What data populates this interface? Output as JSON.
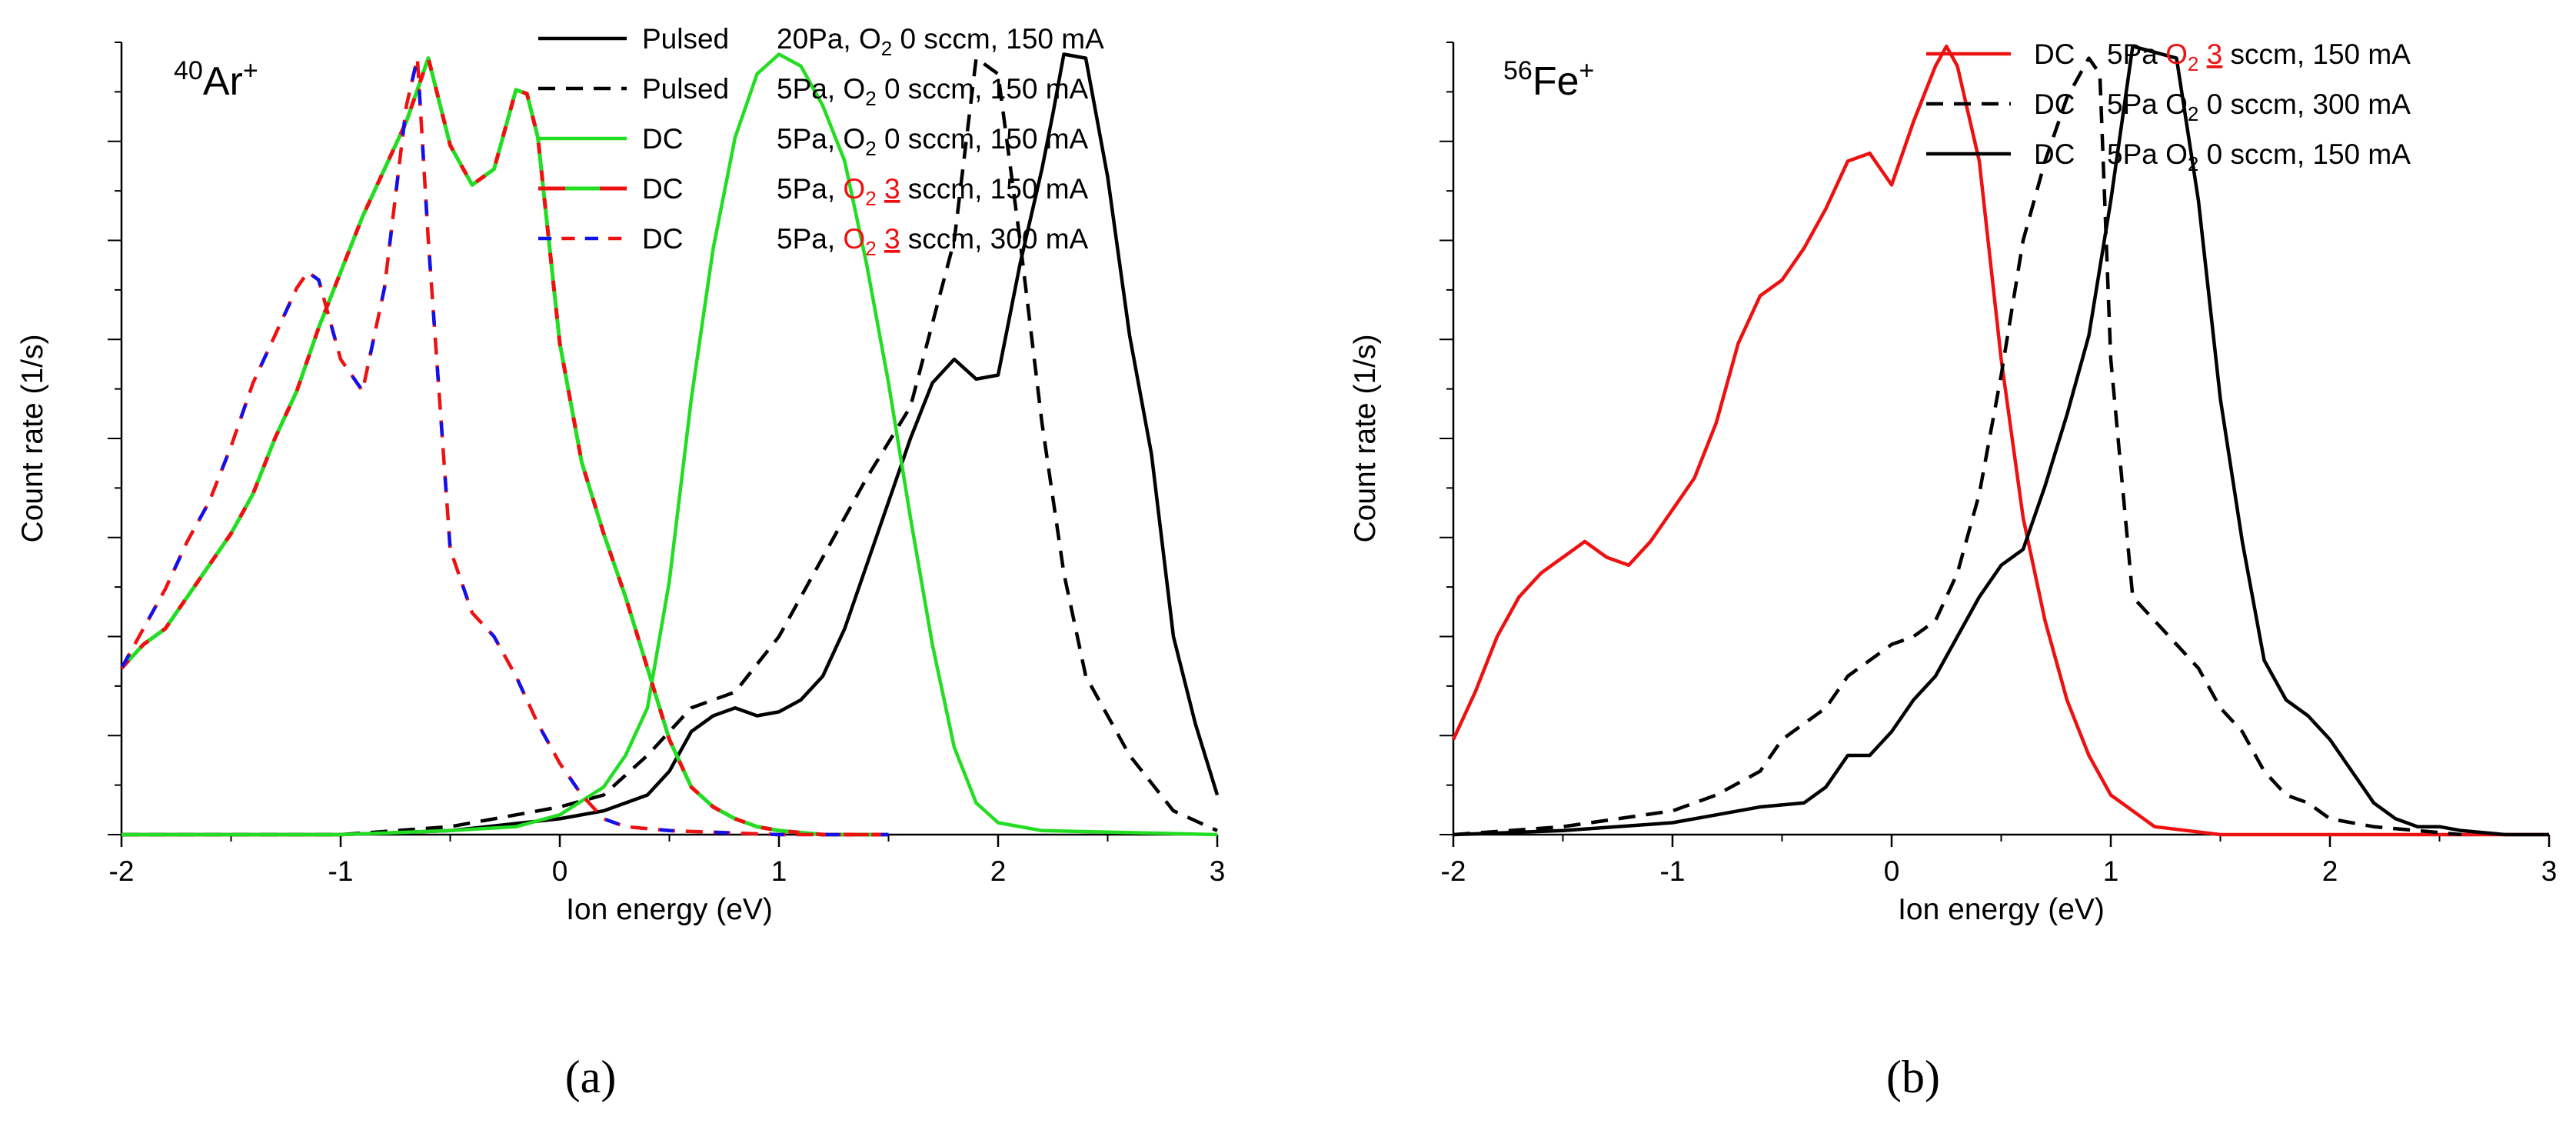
{
  "figure": {
    "captions": [
      "(a)",
      "(b)"
    ]
  },
  "chart_data": [
    {
      "id": "a",
      "type": "line",
      "title": "",
      "annotation": {
        "mass": "40",
        "element": "Ar",
        "charge": "+"
      },
      "xlabel": "Ion energy (eV)",
      "ylabel": "Count rate (1/s)",
      "xlim": [
        -2,
        3
      ],
      "ylim": [
        0,
        1
      ],
      "xticks": [
        -2,
        -1,
        0,
        1,
        2,
        3
      ],
      "yticks_unlabeled": true,
      "legend_position": "top-right",
      "series": [
        {
          "name": "Pulsed 20Pa, O2 0 sccm, 150 mA",
          "legend": {
            "c1": "Pulsed",
            "c2": "20Pa,",
            "gas": "O2",
            "flow": "0",
            "rest": "sccm, 150 mA",
            "gas_red": false
          },
          "color": "#000000",
          "color2": null,
          "dash": "solid",
          "x": [
            -2,
            -1,
            -0.5,
            0,
            0.2,
            0.4,
            0.5,
            0.6,
            0.7,
            0.8,
            0.9,
            1.0,
            1.1,
            1.2,
            1.3,
            1.4,
            1.5,
            1.6,
            1.7,
            1.8,
            1.9,
            2.0,
            2.1,
            2.2,
            2.25,
            2.3,
            2.4,
            2.5,
            2.6,
            2.7,
            2.8,
            2.9,
            3.0
          ],
          "y": [
            0,
            0,
            0.005,
            0.02,
            0.03,
            0.05,
            0.08,
            0.13,
            0.15,
            0.16,
            0.15,
            0.155,
            0.17,
            0.2,
            0.26,
            0.34,
            0.42,
            0.5,
            0.57,
            0.6,
            0.575,
            0.58,
            0.72,
            0.84,
            0.91,
            0.985,
            0.98,
            0.83,
            0.63,
            0.48,
            0.25,
            0.14,
            0.05
          ]
        },
        {
          "name": "Pulsed 5Pa, O2 0 sccm, 150 mA",
          "legend": {
            "c1": "Pulsed",
            "c2": "5Pa,",
            "gas": "O2",
            "flow": "0",
            "rest": "sccm, 150 mA",
            "gas_red": false
          },
          "color": "#000000",
          "color2": null,
          "dash": "dashed",
          "x": [
            -2,
            -1,
            -0.5,
            -0.2,
            0,
            0.2,
            0.4,
            0.6,
            0.8,
            1.0,
            1.2,
            1.4,
            1.6,
            1.8,
            1.9,
            2.0,
            2.1,
            2.2,
            2.3,
            2.4,
            2.6,
            2.8,
            3.0
          ],
          "y": [
            0,
            0,
            0.01,
            0.025,
            0.035,
            0.05,
            0.1,
            0.16,
            0.18,
            0.25,
            0.35,
            0.45,
            0.54,
            0.75,
            0.98,
            0.96,
            0.75,
            0.52,
            0.33,
            0.2,
            0.1,
            0.03,
            0.005
          ]
        },
        {
          "name": "DC 5Pa, O2 0 sccm, 150 mA",
          "legend": {
            "c1": "DC",
            "c2": "5Pa,",
            "gas": "O2",
            "flow": "0",
            "rest": "sccm, 150 mA",
            "gas_red": false
          },
          "color": "#22dd22",
          "color2": null,
          "dash": "solid",
          "x": [
            -2,
            -1,
            -0.5,
            -0.2,
            0,
            0.2,
            0.3,
            0.4,
            0.5,
            0.6,
            0.7,
            0.8,
            0.9,
            1.0,
            1.1,
            1.2,
            1.3,
            1.4,
            1.5,
            1.6,
            1.7,
            1.8,
            1.9,
            2.0,
            2.2,
            3.0
          ],
          "y": [
            0,
            0,
            0.005,
            0.01,
            0.025,
            0.06,
            0.1,
            0.16,
            0.32,
            0.55,
            0.74,
            0.88,
            0.96,
            0.985,
            0.97,
            0.92,
            0.85,
            0.72,
            0.57,
            0.4,
            0.24,
            0.11,
            0.04,
            0.015,
            0.005,
            0
          ]
        },
        {
          "name": "DC 5Pa, O2 3 sccm, 150 mA",
          "legend": {
            "c1": "DC",
            "c2": "5Pa,",
            "gas": "O2",
            "flow": "3",
            "rest": "sccm, 150 mA",
            "gas_red": true
          },
          "color": "#ee1111",
          "color2": "#22dd22",
          "dash": "solid",
          "x": [
            -2,
            -1.9,
            -1.8,
            -1.7,
            -1.6,
            -1.5,
            -1.4,
            -1.3,
            -1.2,
            -1.1,
            -1.0,
            -0.9,
            -0.8,
            -0.7,
            -0.6,
            -0.5,
            -0.4,
            -0.3,
            -0.2,
            -0.15,
            -0.1,
            0,
            0.1,
            0.2,
            0.3,
            0.4,
            0.5,
            0.6,
            0.7,
            0.8,
            0.9,
            1.0,
            1.2,
            1.5
          ],
          "y": [
            0.21,
            0.24,
            0.26,
            0.3,
            0.34,
            0.38,
            0.43,
            0.5,
            0.56,
            0.64,
            0.71,
            0.78,
            0.84,
            0.9,
            0.98,
            0.87,
            0.82,
            0.84,
            0.94,
            0.935,
            0.88,
            0.62,
            0.47,
            0.38,
            0.3,
            0.21,
            0.12,
            0.06,
            0.035,
            0.02,
            0.01,
            0.005,
            0,
            0
          ]
        },
        {
          "name": "DC 5Pa, O2 3 sccm, 300 mA",
          "legend": {
            "c1": "DC",
            "c2": "5Pa,",
            "gas": "O2",
            "flow": "3",
            "rest": "sccm, 300 mA",
            "gas_red": true
          },
          "color": "#ee1111",
          "color2": "#1111ee",
          "dash": "dashed",
          "x": [
            -2,
            -1.9,
            -1.8,
            -1.7,
            -1.6,
            -1.5,
            -1.4,
            -1.3,
            -1.2,
            -1.15,
            -1.1,
            -1.0,
            -0.9,
            -0.8,
            -0.7,
            -0.65,
            -0.6,
            -0.5,
            -0.4,
            -0.3,
            -0.2,
            -0.1,
            0,
            0.1,
            0.2,
            0.3,
            0.5,
            1.0,
            1.5
          ],
          "y": [
            0.21,
            0.26,
            0.31,
            0.37,
            0.42,
            0.49,
            0.57,
            0.63,
            0.69,
            0.71,
            0.7,
            0.6,
            0.56,
            0.69,
            0.92,
            0.98,
            0.75,
            0.36,
            0.28,
            0.25,
            0.2,
            0.14,
            0.09,
            0.05,
            0.02,
            0.01,
            0.005,
            0,
            0
          ]
        }
      ]
    },
    {
      "id": "b",
      "type": "line",
      "title": "",
      "annotation": {
        "mass": "56",
        "element": "Fe",
        "charge": "+"
      },
      "xlabel": "Ion energy (eV)",
      "ylabel": "Count rate (1/s)",
      "xlim": [
        -2,
        3
      ],
      "ylim": [
        0,
        1
      ],
      "xticks": [
        -2,
        -1,
        0,
        1,
        2,
        3
      ],
      "yticks_unlabeled": true,
      "legend_position": "top-right",
      "series": [
        {
          "name": "DC 5Pa O2 3 sccm, 150 mA",
          "legend": {
            "c1": "DC",
            "c2": "5Pa",
            "gas": "O2",
            "flow": "3",
            "rest": "sccm, 150 mA",
            "gas_red": true
          },
          "color": "#ee1111",
          "color2": null,
          "dash": "solid",
          "x": [
            -2,
            -1.9,
            -1.8,
            -1.7,
            -1.6,
            -1.5,
            -1.4,
            -1.3,
            -1.2,
            -1.1,
            -1.0,
            -0.9,
            -0.8,
            -0.7,
            -0.6,
            -0.5,
            -0.4,
            -0.3,
            -0.2,
            -0.1,
            0,
            0.1,
            0.2,
            0.25,
            0.3,
            0.4,
            0.5,
            0.6,
            0.7,
            0.8,
            0.9,
            1.0,
            1.1,
            1.2,
            1.5,
            3.0
          ],
          "y": [
            0.12,
            0.18,
            0.25,
            0.3,
            0.33,
            0.35,
            0.37,
            0.35,
            0.34,
            0.37,
            0.41,
            0.45,
            0.52,
            0.62,
            0.68,
            0.7,
            0.74,
            0.79,
            0.85,
            0.86,
            0.82,
            0.9,
            0.97,
            0.995,
            0.97,
            0.85,
            0.6,
            0.4,
            0.27,
            0.17,
            0.1,
            0.05,
            0.03,
            0.01,
            0,
            0
          ]
        },
        {
          "name": "DC 5Pa O2 0 sccm, 300 mA",
          "legend": {
            "c1": "DC",
            "c2": "5Pa",
            "gas": "O2",
            "flow": "0",
            "rest": "sccm, 300 mA",
            "gas_red": false
          },
          "color": "#000000",
          "color2": null,
          "dash": "dashed",
          "x": [
            -2,
            -1.5,
            -1.0,
            -0.8,
            -0.6,
            -0.5,
            -0.4,
            -0.3,
            -0.2,
            -0.1,
            0,
            0.1,
            0.2,
            0.3,
            0.4,
            0.5,
            0.6,
            0.7,
            0.8,
            0.9,
            0.95,
            1.0,
            1.1,
            1.2,
            1.3,
            1.4,
            1.5,
            1.6,
            1.7,
            1.8,
            1.9,
            2.0,
            2.2,
            2.4,
            2.6
          ],
          "y": [
            0,
            0.01,
            0.03,
            0.05,
            0.08,
            0.12,
            0.14,
            0.16,
            0.2,
            0.22,
            0.24,
            0.25,
            0.27,
            0.33,
            0.43,
            0.58,
            0.75,
            0.85,
            0.93,
            0.98,
            0.96,
            0.6,
            0.3,
            0.27,
            0.24,
            0.21,
            0.16,
            0.13,
            0.08,
            0.05,
            0.04,
            0.02,
            0.01,
            0.005,
            0
          ]
        },
        {
          "name": "DC 5Pa O2 0 sccm, 150 mA",
          "legend": {
            "c1": "DC",
            "c2": "5Pa",
            "gas": "O2",
            "flow": "0",
            "rest": "sccm, 150 mA",
            "gas_red": false
          },
          "color": "#000000",
          "color2": null,
          "dash": "solid",
          "x": [
            -2,
            -1.5,
            -1.0,
            -0.8,
            -0.6,
            -0.4,
            -0.3,
            -0.2,
            -0.1,
            0,
            0.1,
            0.2,
            0.3,
            0.4,
            0.5,
            0.6,
            0.7,
            0.8,
            0.9,
            1.0,
            1.1,
            1.3,
            1.4,
            1.5,
            1.6,
            1.7,
            1.8,
            1.9,
            2.0,
            2.1,
            2.2,
            2.3,
            2.4,
            2.5,
            2.6,
            2.8,
            3.0
          ],
          "y": [
            0,
            0.005,
            0.015,
            0.025,
            0.035,
            0.04,
            0.06,
            0.1,
            0.1,
            0.13,
            0.17,
            0.2,
            0.25,
            0.3,
            0.34,
            0.36,
            0.44,
            0.53,
            0.63,
            0.8,
            0.995,
            0.98,
            0.8,
            0.55,
            0.37,
            0.22,
            0.17,
            0.15,
            0.12,
            0.08,
            0.04,
            0.02,
            0.01,
            0.01,
            0.005,
            0,
            0
          ]
        }
      ]
    }
  ]
}
